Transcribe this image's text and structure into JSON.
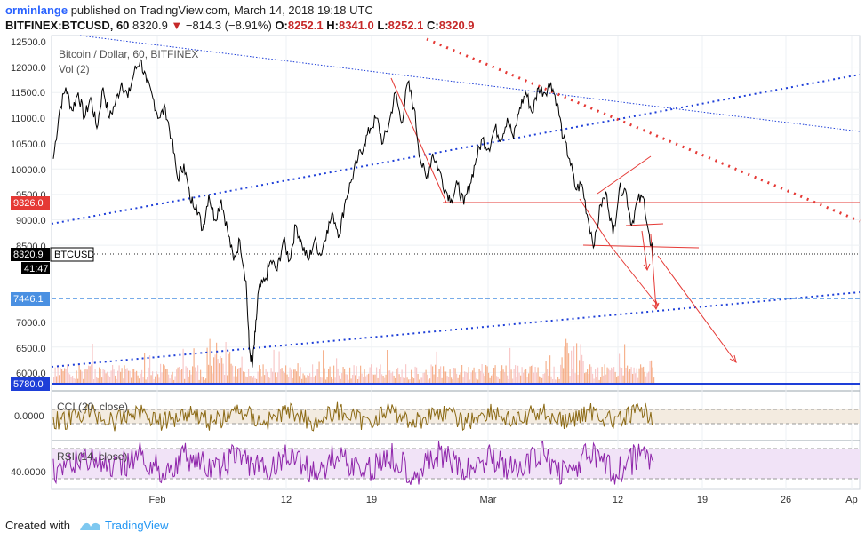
{
  "header": {
    "user": "orminlange",
    "published_text": "published on TradingView.com, March 14, 2018 19:18 UTC",
    "symbol_line": "BITFINEX:BTCUSD, 60",
    "last": "8320.9",
    "change": "−814.3 (−8.91%)",
    "o_label": "O:",
    "o_val": "8252.1",
    "h_label": "H:",
    "h_val": "8341.0",
    "l_label": "L:",
    "l_val": "8252.1",
    "c_label": "C:",
    "c_val": "8320.9"
  },
  "pane_title": "Bitcoin / Dollar, 60, BITFINEX",
  "vol_label": "Vol (2)",
  "cci_label": "CCI (20, close)",
  "rsi_label": "RSI (14, close)",
  "price_axis": {
    "ticks": [
      "12500.0",
      "12000.0",
      "11500.0",
      "11000.0",
      "10500.0",
      "10000.0",
      "9500.0",
      "9000.0",
      "8500.0",
      "7000.0",
      "6500.0",
      "6000.0"
    ],
    "tag_9326": "9326.0",
    "tag_last": "8320.9",
    "tag_last_symbol": "BTCUSD",
    "tag_timer": "41:47",
    "tag_7446": "7446.1",
    "tag_5780": "5780.0"
  },
  "cci_axis": {
    "tick": "0.0000"
  },
  "rsi_axis": {
    "tick": "40.0000"
  },
  "time_axis": [
    "Feb",
    "12",
    "19",
    "Mar",
    "12",
    "19",
    "26",
    "Ap"
  ],
  "footer": {
    "created_with": "Created with",
    "brand": "TradingView"
  },
  "colors": {
    "price_line": "#000000",
    "hline_red": "#e53935",
    "arrow_red": "#e53935",
    "trend_red_dotted": "#e53935",
    "trend_blue_dotted": "#1e3fd8",
    "level_blue": "#1e3fd8",
    "level_blue_dashed": "#4a90e2",
    "volume": "#f4a57a",
    "cci_line": "#8b6914",
    "cci_band": "#f3ebe0",
    "rsi_line": "#8e24aa",
    "rsi_band": "#f1e3f7"
  },
  "chart_data": {
    "type": "line",
    "title": "Bitcoin / Dollar, 60, BITFINEX",
    "x_ticks": [
      "Feb",
      "12",
      "19",
      "Mar",
      "12",
      "19",
      "26",
      "Ap"
    ],
    "ylim": [
      5700,
      12550
    ],
    "y_ticks": [
      6000,
      6500,
      7000,
      8500,
      9000,
      9500,
      10000,
      10500,
      11000,
      11500,
      12000,
      12500
    ],
    "series": [
      {
        "name": "BTCUSD",
        "keypoints": [
          [
            0,
            10200
          ],
          [
            2,
            11150
          ],
          [
            4,
            11600
          ],
          [
            6,
            11150
          ],
          [
            8,
            11500
          ],
          [
            10,
            11000
          ],
          [
            12,
            11400
          ],
          [
            14,
            10800
          ],
          [
            16,
            11600
          ],
          [
            18,
            11000
          ],
          [
            20,
            11300
          ],
          [
            22,
            11700
          ],
          [
            24,
            11400
          ],
          [
            26,
            11900
          ],
          [
            28,
            12150
          ],
          [
            30,
            11700
          ],
          [
            32,
            11400
          ],
          [
            34,
            11000
          ],
          [
            36,
            11200
          ],
          [
            38,
            10600
          ],
          [
            40,
            9800
          ],
          [
            42,
            10100
          ],
          [
            44,
            9400
          ],
          [
            46,
            9300
          ],
          [
            48,
            8800
          ],
          [
            50,
            9500
          ],
          [
            52,
            9000
          ],
          [
            54,
            9400
          ],
          [
            56,
            8800
          ],
          [
            58,
            8200
          ],
          [
            60,
            8600
          ],
          [
            62,
            7800
          ],
          [
            63,
            6500
          ],
          [
            64,
            6100
          ],
          [
            65,
            6800
          ],
          [
            66,
            7600
          ],
          [
            68,
            7800
          ],
          [
            70,
            8200
          ],
          [
            72,
            8000
          ],
          [
            74,
            8600
          ],
          [
            76,
            8200
          ],
          [
            78,
            8900
          ],
          [
            80,
            8500
          ],
          [
            82,
            8200
          ],
          [
            84,
            8600
          ],
          [
            86,
            8300
          ],
          [
            88,
            8800
          ],
          [
            90,
            9100
          ],
          [
            92,
            8700
          ],
          [
            94,
            9400
          ],
          [
            96,
            9800
          ],
          [
            98,
            10200
          ],
          [
            100,
            10500
          ],
          [
            102,
            10800
          ],
          [
            104,
            11000
          ],
          [
            106,
            10500
          ],
          [
            108,
            10900
          ],
          [
            110,
            11500
          ],
          [
            112,
            10900
          ],
          [
            114,
            11700
          ],
          [
            116,
            11200
          ],
          [
            118,
            10200
          ],
          [
            120,
            9800
          ],
          [
            122,
            10300
          ],
          [
            124,
            10000
          ],
          [
            126,
            9600
          ],
          [
            128,
            9400
          ],
          [
            130,
            9700
          ],
          [
            132,
            9300
          ],
          [
            134,
            9700
          ],
          [
            136,
            10200
          ],
          [
            138,
            10600
          ],
          [
            140,
            10400
          ],
          [
            142,
            10800
          ],
          [
            144,
            10600
          ],
          [
            146,
            11000
          ],
          [
            148,
            10600
          ],
          [
            150,
            11200
          ],
          [
            152,
            11500
          ],
          [
            154,
            11100
          ],
          [
            156,
            11600
          ],
          [
            158,
            11500
          ],
          [
            160,
            11700
          ],
          [
            162,
            11300
          ],
          [
            164,
            10600
          ],
          [
            166,
            10200
          ],
          [
            168,
            9600
          ],
          [
            170,
            9700
          ],
          [
            172,
            9000
          ],
          [
            174,
            8500
          ],
          [
            176,
            9300
          ],
          [
            178,
            9500
          ],
          [
            180,
            8700
          ],
          [
            182,
            9600
          ],
          [
            184,
            9600
          ],
          [
            186,
            8900
          ],
          [
            188,
            9400
          ],
          [
            190,
            9400
          ],
          [
            192,
            8500
          ],
          [
            193,
            8320
          ]
        ]
      }
    ],
    "horizontal_levels": [
      9326.0,
      8320.9,
      7446.1,
      5780.0
    ]
  }
}
